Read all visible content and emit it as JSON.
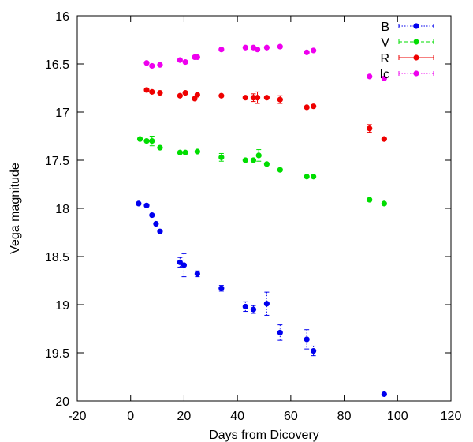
{
  "chart_data": {
    "type": "scatter",
    "xlabel": "Days from Dicovery",
    "ylabel": "Vega magnitude",
    "xlim": [
      -20,
      120
    ],
    "ylim": [
      16,
      20
    ],
    "y_inverted": true,
    "grid": false,
    "legend_position": "top-right",
    "xticks": [
      "-20",
      "0",
      "20",
      "40",
      "60",
      "80",
      "100",
      "120"
    ],
    "yticks": [
      "16",
      "16.5",
      "17",
      "17.5",
      "18",
      "18.5",
      "19",
      "19.5",
      "20"
    ],
    "series": [
      {
        "name": "B",
        "color": "#0000ee",
        "line_style": "dotted",
        "points": [
          {
            "x": 3,
            "y": 17.95,
            "err": 0.02
          },
          {
            "x": 6,
            "y": 17.97,
            "err": 0.02
          },
          {
            "x": 8,
            "y": 18.07,
            "err": 0.02
          },
          {
            "x": 9.5,
            "y": 18.16,
            "err": 0.02
          },
          {
            "x": 11,
            "y": 18.24,
            "err": 0.02
          },
          {
            "x": 18.5,
            "y": 18.56,
            "err": 0.05
          },
          {
            "x": 20,
            "y": 18.59,
            "err": 0.12
          },
          {
            "x": 25,
            "y": 18.68,
            "err": 0.03
          },
          {
            "x": 34,
            "y": 18.83,
            "err": 0.03
          },
          {
            "x": 43,
            "y": 19.02,
            "err": 0.05
          },
          {
            "x": 46,
            "y": 19.05,
            "err": 0.04
          },
          {
            "x": 51,
            "y": 18.99,
            "err": 0.12
          },
          {
            "x": 56,
            "y": 19.29,
            "err": 0.08
          },
          {
            "x": 66,
            "y": 19.36,
            "err": 0.1
          },
          {
            "x": 68.5,
            "y": 19.48,
            "err": 0.05
          },
          {
            "x": 95,
            "y": 19.93,
            "err": 0.02
          }
        ]
      },
      {
        "name": "V",
        "color": "#00dd00",
        "line_style": "dashed",
        "points": [
          {
            "x": 3.5,
            "y": 17.28,
            "err": 0.02
          },
          {
            "x": 6,
            "y": 17.3,
            "err": 0.02
          },
          {
            "x": 8,
            "y": 17.3,
            "err": 0.05
          },
          {
            "x": 11,
            "y": 17.37,
            "err": 0.02
          },
          {
            "x": 18.5,
            "y": 17.42,
            "err": 0.02
          },
          {
            "x": 20.5,
            "y": 17.42,
            "err": 0.02
          },
          {
            "x": 25,
            "y": 17.41,
            "err": 0.02
          },
          {
            "x": 34,
            "y": 17.47,
            "err": 0.04
          },
          {
            "x": 43,
            "y": 17.5,
            "err": 0.02
          },
          {
            "x": 46,
            "y": 17.5,
            "err": 0.02
          },
          {
            "x": 48,
            "y": 17.45,
            "err": 0.06
          },
          {
            "x": 51,
            "y": 17.54,
            "err": 0.02
          },
          {
            "x": 56,
            "y": 17.6,
            "err": 0.02
          },
          {
            "x": 66,
            "y": 17.67,
            "err": 0.02
          },
          {
            "x": 68.5,
            "y": 17.67,
            "err": 0.02
          },
          {
            "x": 89.5,
            "y": 17.91,
            "err": 0.02
          },
          {
            "x": 95,
            "y": 17.95,
            "err": 0.02
          }
        ]
      },
      {
        "name": "R",
        "color": "#ee0000",
        "line_style": "solid",
        "points": [
          {
            "x": 6,
            "y": 16.77,
            "err": 0.02
          },
          {
            "x": 8,
            "y": 16.79,
            "err": 0.02
          },
          {
            "x": 11,
            "y": 16.8,
            "err": 0.02
          },
          {
            "x": 18.5,
            "y": 16.83,
            "err": 0.02
          },
          {
            "x": 20.5,
            "y": 16.8,
            "err": 0.02
          },
          {
            "x": 24,
            "y": 16.86,
            "err": 0.02
          },
          {
            "x": 25,
            "y": 16.82,
            "err": 0.02
          },
          {
            "x": 34,
            "y": 16.83,
            "err": 0.02
          },
          {
            "x": 43,
            "y": 16.85,
            "err": 0.02
          },
          {
            "x": 46,
            "y": 16.85,
            "err": 0.04
          },
          {
            "x": 47.5,
            "y": 16.85,
            "err": 0.06
          },
          {
            "x": 51,
            "y": 16.85,
            "err": 0.02
          },
          {
            "x": 56,
            "y": 16.87,
            "err": 0.04
          },
          {
            "x": 66,
            "y": 16.95,
            "err": 0.02
          },
          {
            "x": 68.5,
            "y": 16.94,
            "err": 0.02
          },
          {
            "x": 89.5,
            "y": 17.17,
            "err": 0.04
          },
          {
            "x": 95,
            "y": 17.28,
            "err": 0.02
          }
        ]
      },
      {
        "name": "Ic",
        "color": "#ee00ee",
        "line_style": "dotted",
        "points": [
          {
            "x": 6,
            "y": 16.49,
            "err": 0.02
          },
          {
            "x": 8,
            "y": 16.52,
            "err": 0.02
          },
          {
            "x": 11,
            "y": 16.51,
            "err": 0.02
          },
          {
            "x": 18.5,
            "y": 16.46,
            "err": 0.02
          },
          {
            "x": 20.5,
            "y": 16.48,
            "err": 0.02
          },
          {
            "x": 24,
            "y": 16.43,
            "err": 0.02
          },
          {
            "x": 25,
            "y": 16.43,
            "err": 0.02
          },
          {
            "x": 34,
            "y": 16.35,
            "err": 0.02
          },
          {
            "x": 43,
            "y": 16.33,
            "err": 0.02
          },
          {
            "x": 46,
            "y": 16.33,
            "err": 0.02
          },
          {
            "x": 47.5,
            "y": 16.35,
            "err": 0.02
          },
          {
            "x": 51,
            "y": 16.33,
            "err": 0.02
          },
          {
            "x": 56,
            "y": 16.32,
            "err": 0.02
          },
          {
            "x": 66,
            "y": 16.38,
            "err": 0.02
          },
          {
            "x": 68.5,
            "y": 16.36,
            "err": 0.02
          },
          {
            "x": 89.5,
            "y": 16.63,
            "err": 0.02
          },
          {
            "x": 95,
            "y": 16.65,
            "err": 0.02
          }
        ]
      }
    ]
  }
}
